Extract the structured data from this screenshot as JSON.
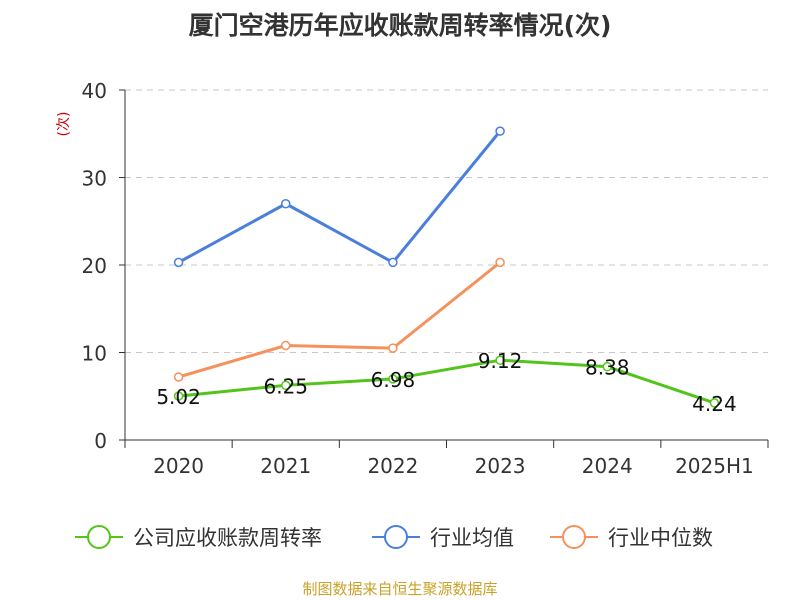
{
  "chart_data": {
    "type": "line",
    "title": "厦门空港历年应收账款周转率情况(次)",
    "ylabel": "(次)",
    "categories": [
      "2020",
      "2021",
      "2022",
      "2023",
      "2024",
      "2025H1"
    ],
    "yticks": [
      "0",
      "10",
      "20",
      "30",
      "40"
    ],
    "ylim": [
      0,
      40
    ],
    "grid": true,
    "legend_position": "bottom",
    "series": [
      {
        "name": "公司应收账款周转率",
        "color": "#52c41a",
        "values": [
          5.02,
          6.25,
          6.98,
          9.12,
          8.38,
          4.24
        ],
        "labels": [
          "5.02",
          "6.25",
          "6.98",
          "9.12",
          "8.38",
          "4.24"
        ]
      },
      {
        "name": "行业均值",
        "color": "#4a7fdc",
        "values": [
          20.3,
          27.0,
          20.3,
          35.3,
          null,
          null
        ]
      },
      {
        "name": "行业中位数",
        "color": "#f5915c",
        "values": [
          7.2,
          10.8,
          10.5,
          20.3,
          null,
          null
        ]
      }
    ]
  },
  "source": "制图数据来自恒生聚源数据库"
}
